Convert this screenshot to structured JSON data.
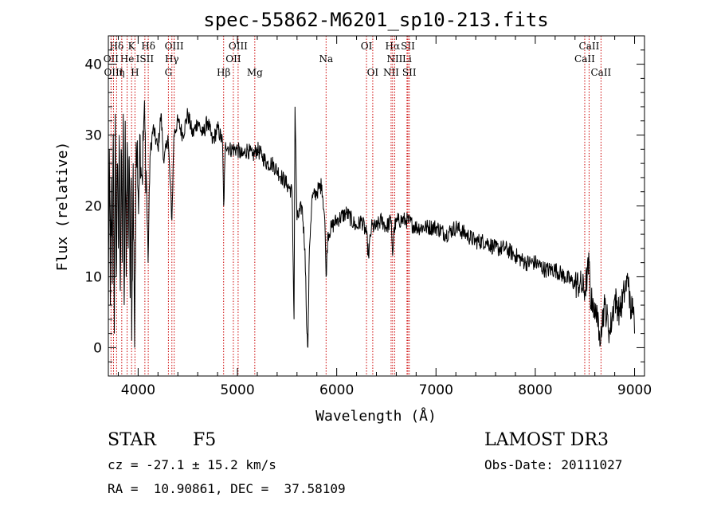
{
  "chart_data": {
    "type": "line",
    "title": "spec-55862-M6201_sp10-213.fits",
    "xlabel": "Wavelength (Å)",
    "ylabel": "Flux (relative)",
    "xlim": [
      3700,
      9100
    ],
    "ylim": [
      -4,
      44
    ],
    "xticks": [
      4000,
      5000,
      6000,
      7000,
      8000,
      9000
    ],
    "yticks": [
      0,
      10,
      20,
      30,
      40
    ],
    "series": [
      {
        "name": "flux",
        "anchors": [
          [
            3700,
            5
          ],
          [
            3710,
            28
          ],
          [
            3720,
            6
          ],
          [
            3730,
            24
          ],
          [
            3740,
            9
          ],
          [
            3750,
            30
          ],
          [
            3760,
            2
          ],
          [
            3770,
            33
          ],
          [
            3780,
            10
          ],
          [
            3790,
            26
          ],
          [
            3800,
            14
          ],
          [
            3810,
            30
          ],
          [
            3820,
            8
          ],
          [
            3830,
            28
          ],
          [
            3840,
            12
          ],
          [
            3850,
            33
          ],
          [
            3860,
            6
          ],
          [
            3870,
            32
          ],
          [
            3880,
            10
          ],
          [
            3890,
            29
          ],
          [
            3900,
            14
          ],
          [
            3910,
            27
          ],
          [
            3920,
            7
          ],
          [
            3930,
            24
          ],
          [
            3935,
            1
          ],
          [
            3950,
            26
          ],
          [
            3965,
            0
          ],
          [
            3980,
            29
          ],
          [
            4000,
            22
          ],
          [
            4020,
            30
          ],
          [
            4040,
            24
          ],
          [
            4060,
            33
          ],
          [
            4080,
            25
          ],
          [
            4100,
            12
          ],
          [
            4120,
            27
          ],
          [
            4150,
            31
          ],
          [
            4200,
            28
          ],
          [
            4230,
            33
          ],
          [
            4260,
            26
          ],
          [
            4300,
            30
          ],
          [
            4340,
            18
          ],
          [
            4360,
            30
          ],
          [
            4400,
            32
          ],
          [
            4450,
            30
          ],
          [
            4500,
            33
          ],
          [
            4550,
            30
          ],
          [
            4600,
            32
          ],
          [
            4650,
            30
          ],
          [
            4700,
            32
          ],
          [
            4750,
            29
          ],
          [
            4800,
            31
          ],
          [
            4850,
            29
          ],
          [
            4862,
            20
          ],
          [
            4880,
            29
          ],
          [
            4920,
            28
          ],
          [
            5000,
            28
          ],
          [
            5050,
            27
          ],
          [
            5100,
            28
          ],
          [
            5150,
            27
          ],
          [
            5200,
            28
          ],
          [
            5250,
            27
          ],
          [
            5300,
            26
          ],
          [
            5350,
            26
          ],
          [
            5400,
            25
          ],
          [
            5450,
            24
          ],
          [
            5500,
            23
          ],
          [
            5550,
            22
          ],
          [
            5570,
            4
          ],
          [
            5580,
            34
          ],
          [
            5600,
            18
          ],
          [
            5650,
            20
          ],
          [
            5680,
            14
          ],
          [
            5700,
            2
          ],
          [
            5710,
            0
          ],
          [
            5725,
            14
          ],
          [
            5750,
            21
          ],
          [
            5800,
            22
          ],
          [
            5850,
            23
          ],
          [
            5880,
            18
          ],
          [
            5893,
            10
          ],
          [
            5910,
            16
          ],
          [
            5950,
            17
          ],
          [
            6000,
            18
          ],
          [
            6100,
            19
          ],
          [
            6200,
            17
          ],
          [
            6250,
            18
          ],
          [
            6300,
            16
          ],
          [
            6320,
            13
          ],
          [
            6350,
            17
          ],
          [
            6400,
            17
          ],
          [
            6450,
            18
          ],
          [
            6500,
            17
          ],
          [
            6550,
            18
          ],
          [
            6563,
            13
          ],
          [
            6580,
            17
          ],
          [
            6620,
            18
          ],
          [
            6700,
            18
          ],
          [
            6800,
            17
          ],
          [
            6900,
            17
          ],
          [
            7000,
            17
          ],
          [
            7100,
            16
          ],
          [
            7200,
            17
          ],
          [
            7300,
            16
          ],
          [
            7400,
            15
          ],
          [
            7500,
            15
          ],
          [
            7600,
            14
          ],
          [
            7700,
            14
          ],
          [
            7800,
            13
          ],
          [
            7900,
            12
          ],
          [
            8000,
            12
          ],
          [
            8100,
            11
          ],
          [
            8200,
            11
          ],
          [
            8300,
            10
          ],
          [
            8400,
            9
          ],
          [
            8450,
            9
          ],
          [
            8500,
            8
          ],
          [
            8542,
            12
          ],
          [
            8560,
            6
          ],
          [
            8580,
            7
          ],
          [
            8600,
            4
          ],
          [
            8620,
            6
          ],
          [
            8640,
            1
          ],
          [
            8662,
            3
          ],
          [
            8700,
            6
          ],
          [
            8750,
            2
          ],
          [
            8800,
            7
          ],
          [
            8850,
            5
          ],
          [
            8900,
            8
          ],
          [
            8940,
            10
          ],
          [
            8960,
            4
          ],
          [
            8980,
            7
          ],
          [
            9000,
            2
          ]
        ]
      }
    ],
    "lines": [
      {
        "name": "Hδ",
        "x": 3783,
        "row": 1
      },
      {
        "name": "K",
        "x": 3934,
        "row": 1
      },
      {
        "name": "Hδ",
        "x": 4102,
        "row": 1
      },
      {
        "name": "OIII",
        "x": 4363,
        "row": 1
      },
      {
        "name": "OIII",
        "x": 5007,
        "row": 1
      },
      {
        "name": "OI",
        "x": 6300,
        "row": 1
      },
      {
        "name": "Hα",
        "x": 6563,
        "row": 1
      },
      {
        "name": "SII",
        "x": 6717,
        "row": 1
      },
      {
        "name": "CaII",
        "x": 8542,
        "row": 1
      },
      {
        "name": "OII",
        "x": 3727,
        "row": 2
      },
      {
        "name": "He",
        "x": 3889,
        "row": 2
      },
      {
        "name": "ISII",
        "x": 4068,
        "row": 2
      },
      {
        "name": "Hγ",
        "x": 4340,
        "row": 2
      },
      {
        "name": "OII",
        "x": 4959,
        "row": 2
      },
      {
        "name": "Na",
        "x": 5893,
        "row": 2
      },
      {
        "name": "NII",
        "x": 6584,
        "row": 2
      },
      {
        "name": "Li",
        "x": 6708,
        "row": 2
      },
      {
        "name": "CaII",
        "x": 8498,
        "row": 2
      },
      {
        "name": "OIII",
        "x": 3752,
        "row": 3
      },
      {
        "name": "η",
        "x": 3835,
        "row": 3
      },
      {
        "name": "H",
        "x": 3968,
        "row": 3
      },
      {
        "name": "G",
        "x": 4305,
        "row": 3
      },
      {
        "name": "Hβ",
        "x": 4861,
        "row": 3
      },
      {
        "name": "Mg",
        "x": 5175,
        "row": 3
      },
      {
        "name": "OI",
        "x": 6363,
        "row": 3
      },
      {
        "name": "NII",
        "x": 6548,
        "row": 3
      },
      {
        "name": "SII",
        "x": 6731,
        "row": 3
      },
      {
        "name": "CaII",
        "x": 8662,
        "row": 3
      }
    ],
    "line_color": "#cc0000",
    "series_color": "#000000"
  },
  "info": {
    "object_class": "STAR",
    "subclass": "F5",
    "survey": "LAMOST DR3",
    "redshift": "cz = -27.1 ± 15.2 km/s",
    "obs_date": "Obs-Date: 20111027",
    "coords": "RA =  10.90861, DEC =  37.58109"
  }
}
